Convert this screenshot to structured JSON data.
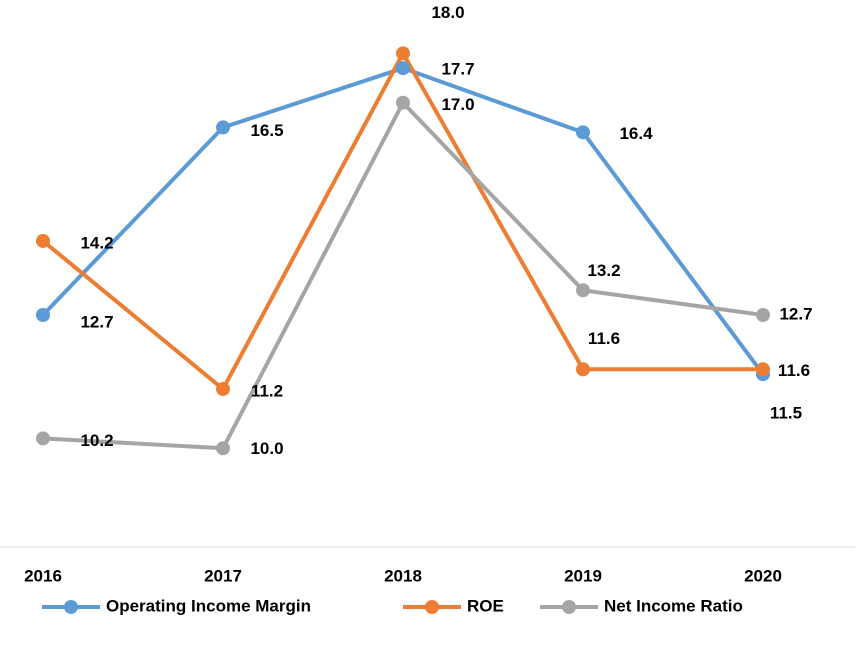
{
  "chart_data": {
    "type": "line",
    "categories": [
      "2016",
      "2017",
      "2018",
      "2019",
      "2020"
    ],
    "series": [
      {
        "name": "Operating Income Margin",
        "color": "#5b9bd5",
        "values": [
          12.7,
          16.5,
          17.7,
          16.4,
          11.5
        ]
      },
      {
        "name": "ROE",
        "color": "#ed7d31",
        "values": [
          14.2,
          11.2,
          18.0,
          11.6,
          11.6
        ]
      },
      {
        "name": "Net Income Ratio",
        "color": "#a5a5a5",
        "values": [
          10.2,
          10.0,
          17.0,
          13.2,
          12.7
        ]
      }
    ],
    "value_labels": [
      [
        "12.7",
        "16.5",
        "17.7",
        "16.4",
        "11.5"
      ],
      [
        "14.2",
        "11.2",
        "18.0",
        "11.6",
        "11.6"
      ],
      [
        "10.2",
        "10.0",
        "17.0",
        "13.2",
        "12.7"
      ]
    ],
    "ylim": [
      8,
      19
    ],
    "legend": "bottom"
  }
}
